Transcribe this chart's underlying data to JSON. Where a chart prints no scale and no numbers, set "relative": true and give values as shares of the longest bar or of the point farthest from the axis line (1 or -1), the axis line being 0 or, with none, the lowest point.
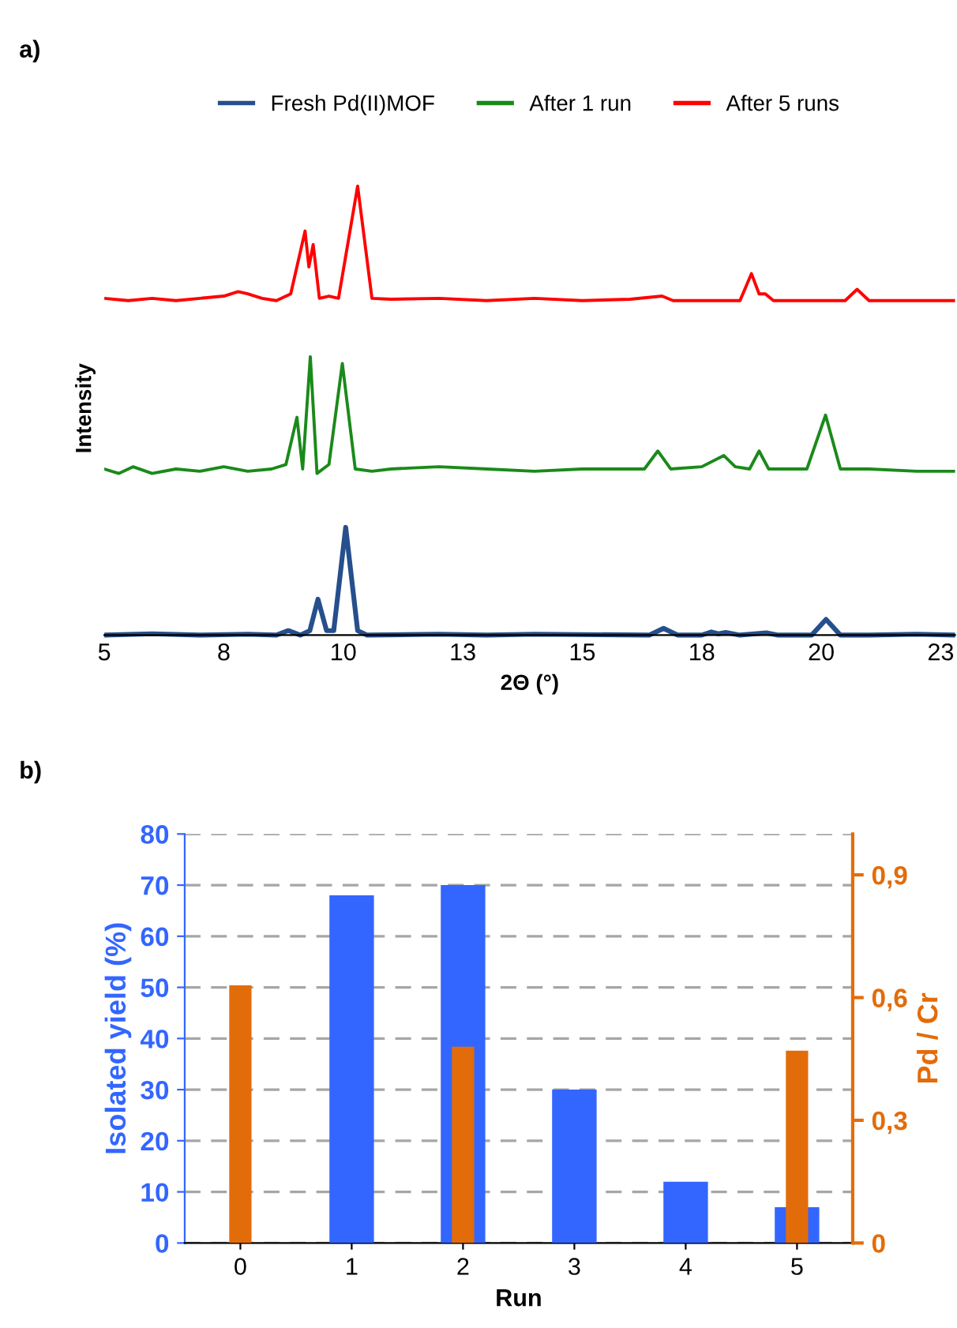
{
  "chart_data": [
    {
      "type": "line",
      "relative": true,
      "xlabel": "2Θ (°)",
      "ylabel": "Intensity",
      "annotations": [
        "a)"
      ],
      "legend": "top",
      "grid": false,
      "marker": "none",
      "line_style": "solid",
      "tick_labels": "x",
      "xlim": [
        5,
        22.8
      ],
      "xticks": [
        5,
        {
          "value": 7.5,
          "label": "8"
        },
        10,
        {
          "value": 12.5,
          "label": "13"
        },
        15,
        {
          "value": 17.5,
          "label": "18"
        },
        20,
        {
          "value": 22.5,
          "label": "23"
        }
      ],
      "series": [
        {
          "name": "Fresh Pd(II)MOF",
          "color": "#264f8c",
          "x": [
            5,
            6,
            7,
            8,
            8.6,
            8.85,
            9.1,
            9.3,
            9.47,
            9.65,
            9.8,
            10.05,
            10.3,
            10.5,
            12,
            13,
            14,
            16.4,
            16.7,
            17,
            17.5,
            17.7,
            17.85,
            18.0,
            18.3,
            18.85,
            19.1,
            19.8,
            20.1,
            20.4,
            21,
            22,
            22.8
          ],
          "values": [
            0,
            0.003,
            0,
            0.002,
            0,
            0.01,
            0,
            0.01,
            0.08,
            0.01,
            0.01,
            0.24,
            0.01,
            0,
            0.002,
            0,
            0.002,
            0,
            0.015,
            0,
            0,
            0.007,
            0.003,
            0.006,
            0,
            0.005,
            0,
            0,
            0.035,
            0,
            0,
            0.002,
            0
          ]
        },
        {
          "name": "After 1 run",
          "color": "#1a8a1a",
          "x": [
            5,
            5.3,
            5.6,
            6,
            6.5,
            7,
            7.5,
            8,
            8.5,
            8.8,
            9.03,
            9.15,
            9.31,
            9.45,
            9.7,
            9.98,
            10.25,
            10.6,
            11,
            12,
            13,
            14,
            15,
            16.3,
            16.58,
            16.85,
            17.5,
            17.96,
            18.2,
            18.5,
            18.7,
            18.9,
            19.7,
            20.09,
            20.4,
            21,
            22,
            22.8
          ],
          "values": [
            0.37,
            0.36,
            0.375,
            0.36,
            0.37,
            0.365,
            0.375,
            0.365,
            0.37,
            0.38,
            0.485,
            0.37,
            0.62,
            0.36,
            0.38,
            0.605,
            0.37,
            0.365,
            0.37,
            0.375,
            0.37,
            0.365,
            0.37,
            0.37,
            0.41,
            0.37,
            0.375,
            0.4,
            0.375,
            0.37,
            0.41,
            0.37,
            0.37,
            0.49,
            0.37,
            0.37,
            0.365,
            0.365
          ]
        },
        {
          "name": "After 5 runs",
          "color": "#ff0000",
          "x": [
            5,
            5.5,
            6,
            6.5,
            7,
            7.5,
            7.8,
            8.0,
            8.3,
            8.6,
            8.9,
            9.2,
            9.28,
            9.37,
            9.5,
            9.7,
            9.9,
            10.3,
            10.6,
            11,
            12,
            13,
            14,
            15,
            16,
            16.67,
            16.9,
            17.5,
            18.3,
            18.54,
            18.7,
            18.83,
            19,
            19.5,
            20.5,
            20.75,
            21,
            22,
            22.8
          ],
          "values": [
            0.75,
            0.745,
            0.75,
            0.745,
            0.75,
            0.755,
            0.765,
            0.76,
            0.75,
            0.745,
            0.76,
            0.9,
            0.82,
            0.87,
            0.75,
            0.755,
            0.75,
            1,
            0.75,
            0.748,
            0.75,
            0.745,
            0.75,
            0.745,
            0.748,
            0.755,
            0.745,
            0.745,
            0.745,
            0.805,
            0.76,
            0.76,
            0.745,
            0.745,
            0.745,
            0.77,
            0.745,
            0.745,
            0.745
          ]
        }
      ]
    },
    {
      "type": "bar",
      "xlabel": "Run",
      "ylabel": "Isolated yield (%)",
      "y2label": "Pd / Cr",
      "annotations": [
        "b)"
      ],
      "grid": "y",
      "legend": false,
      "categories": [
        "0",
        "1",
        "2",
        "3",
        "4",
        "5"
      ],
      "ylim": [
        0,
        80
      ],
      "yticks": [
        0,
        10,
        20,
        30,
        40,
        50,
        60,
        70,
        80
      ],
      "y2lim": [
        0,
        1.0
      ],
      "y2ticks": [
        0,
        {
          "value": 0.3,
          "label": "0,3"
        },
        {
          "value": 0.6,
          "label": "0,6"
        },
        {
          "value": 0.9,
          "label": "0,9"
        }
      ],
      "series": [
        {
          "color": "#3366ff",
          "values": [
            0,
            68,
            70,
            30,
            12,
            7
          ]
        },
        {
          "color": "#e36c0a",
          "axis": "y2",
          "values": [
            0.63,
            null,
            0.48,
            null,
            null,
            0.47
          ]
        }
      ]
    }
  ]
}
